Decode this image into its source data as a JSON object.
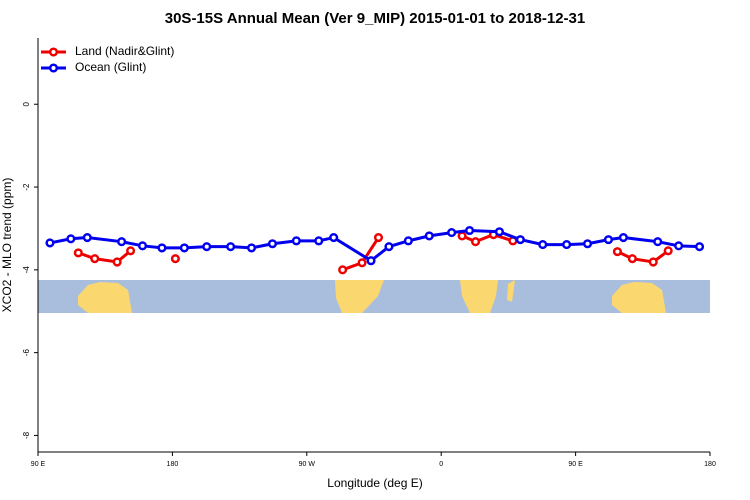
{
  "chart_data": {
    "type": "line",
    "title": "30S-15S Annual Mean (Ver 9_MIP)   2015-01-01 to 2018-12-31",
    "x_label": "Longitude (deg E)",
    "y_label": "XCO2 - MLO trend (ppm)",
    "xlim": [
      90,
      540
    ],
    "ylim": [
      -8.4,
      1.6
    ],
    "xticks": [
      {
        "value": 90,
        "label": "90 E"
      },
      180,
      {
        "value": 270,
        "label": "90 W"
      },
      {
        "value": 360,
        "label": "0"
      },
      {
        "value": 450,
        "label": "90 E"
      },
      {
        "value": 540,
        "label": "180"
      }
    ],
    "yticks": [
      0,
      -2,
      -4,
      -6,
      -8
    ],
    "legend": "top-left",
    "series": [
      {
        "name": "Land (Nadir&Glint)",
        "color": "#ee0000",
        "x": [
          117,
          128,
          143,
          152,
          null,
          182,
          null,
          294,
          307,
          318,
          null,
          374,
          383,
          395,
          408,
          null,
          478,
          488,
          502,
          512
        ],
        "values": [
          -3.59,
          -3.73,
          -3.81,
          -3.54,
          null,
          -3.73,
          null,
          -4.0,
          -3.83,
          -3.22,
          null,
          -3.18,
          -3.32,
          -3.15,
          -3.3,
          null,
          -3.56,
          -3.73,
          -3.81,
          -3.54
        ]
      },
      {
        "name": "Ocean (Glint)",
        "color": "#0000ee",
        "x": [
          98,
          112,
          123,
          146,
          160,
          173,
          188,
          203,
          219,
          233,
          247,
          263,
          278,
          288,
          313,
          325,
          338,
          352,
          367,
          379,
          399,
          413,
          428,
          444,
          458,
          472,
          482,
          505,
          519,
          533
        ],
        "values": [
          -3.35,
          -3.25,
          -3.22,
          -3.32,
          -3.42,
          -3.47,
          -3.47,
          -3.44,
          -3.44,
          -3.47,
          -3.37,
          -3.3,
          -3.3,
          -3.22,
          -3.78,
          -3.44,
          -3.3,
          -3.18,
          -3.1,
          -3.05,
          -3.08,
          -3.27,
          -3.39,
          -3.39,
          -3.37,
          -3.27,
          -3.22,
          -3.32,
          -3.42,
          -3.44
        ]
      }
    ]
  }
}
